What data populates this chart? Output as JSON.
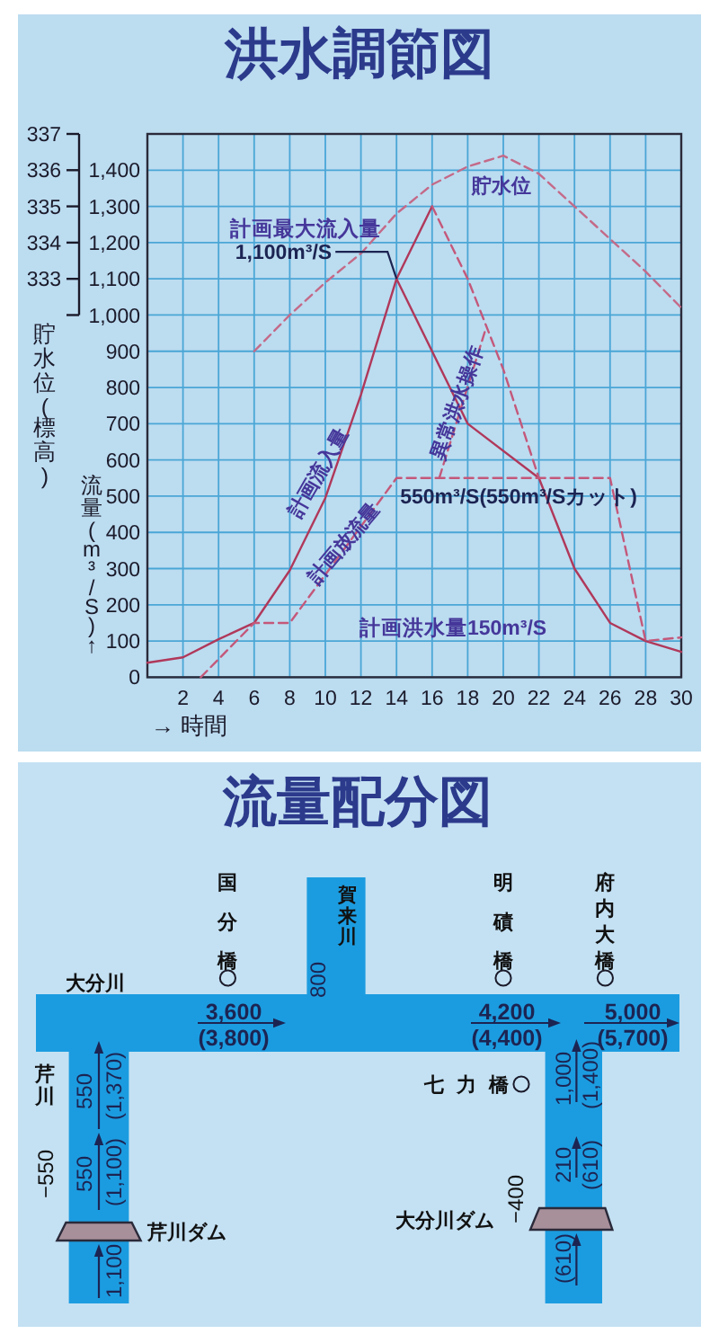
{
  "chart_data": [
    {
      "type": "line",
      "title": "洪水調節図",
      "xlabel": "→ 時間",
      "ylabel": "流量(m³/S)↑",
      "y2label": "貯水位(標高)",
      "xlim": [
        0,
        30
      ],
      "xticks": [
        2,
        4,
        6,
        8,
        10,
        12,
        14,
        16,
        18,
        20,
        22,
        24,
        26,
        28,
        30
      ],
      "ylim": [
        0,
        1500
      ],
      "yticks": [
        0,
        100,
        200,
        300,
        400,
        500,
        600,
        700,
        800,
        900,
        {
          "value": 1000,
          "label": "1,000"
        },
        {
          "value": 1100,
          "label": "1,100"
        },
        {
          "value": 1200,
          "label": "1,200"
        },
        {
          "value": 1300,
          "label": "1,300"
        },
        {
          "value": 1400,
          "label": "1,400"
        }
      ],
      "y2lim": [
        322,
        337
      ],
      "y2ticks": [
        {
          "value": 332,
          "label": null
        },
        333,
        334,
        335,
        336,
        337
      ],
      "grid": true,
      "series": [
        {
          "name": "計画流入量",
          "color": "#b0385a",
          "line_style": "solid",
          "x": [
            0,
            2,
            4,
            6,
            8,
            10,
            12,
            14,
            18,
            22,
            24,
            26,
            28,
            30
          ],
          "values": [
            40,
            55,
            105,
            150,
            295,
            495,
            780,
            1100,
            700,
            550,
            300,
            150,
            100,
            70
          ]
        },
        {
          "name": "計画放流量",
          "color": "#c4587a",
          "line_style": "dashed",
          "x": [
            3,
            6,
            8,
            14,
            26,
            28,
            30
          ],
          "values": [
            0,
            150,
            150,
            550,
            550,
            100,
            110
          ]
        },
        {
          "color": "#b0385a",
          "line_style": "solid",
          "x": [
            14,
            16
          ],
          "values": [
            1100,
            1300
          ]
        },
        {
          "color": "#c4587a",
          "line_style": "dashed",
          "x": [
            16,
            18,
            20,
            22
          ],
          "values": [
            1300,
            1100,
            850,
            550
          ]
        },
        {
          "name": "異常洪水操作",
          "color": "#c4587a",
          "line_style": "dashed",
          "x": [
            16.4,
            19
          ],
          "values": [
            550,
            960
          ]
        },
        {
          "name": "貯水位",
          "color": "#c46a88",
          "line_style": "dashed",
          "axis": "y2",
          "x": [
            6,
            8,
            10,
            12,
            14,
            16,
            18,
            20,
            22,
            24,
            26,
            28,
            30
          ],
          "values": [
            331,
            332,
            332.9,
            333.7,
            334.8,
            335.6,
            336.1,
            336.4,
            335.9,
            335,
            334.1,
            333.2,
            332.2
          ]
        }
      ],
      "annotations": [
        "計画最大流入量",
        {
          "text": "1,100m³/S",
          "x": 14,
          "y": 1100
        },
        {
          "text": "550m³/S(550m³/Sカット)",
          "x": 14,
          "y": 550
        },
        "計画洪水量150m³/S"
      ]
    },
    {
      "type": "other",
      "title": "流量配分図",
      "annotations": [
        "大分川",
        "国分橋",
        "賀来川",
        "800",
        "明磧橋",
        "府内大橋",
        "3,600",
        "(3,800)",
        "4,200",
        "(4,400)",
        "5,000",
        "(5,700)",
        "芹川",
        "550",
        "(1,370)",
        "550",
        "(1,100)",
        "−550",
        "芹川ダム",
        "1,100",
        "七力橋",
        "1,000",
        "(1,400)",
        "210",
        "(610)",
        "−400",
        "大分川ダム",
        "(610)"
      ]
    }
  ]
}
